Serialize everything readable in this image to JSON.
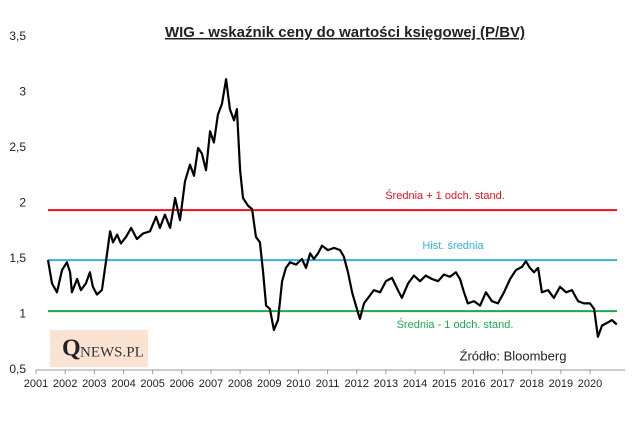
{
  "chart_data": {
    "type": "line",
    "title": "WIG - wskaźnik ceny do wartości księgowej (P/BV)",
    "x": [
      2001.41,
      2001.55,
      2001.72,
      2001.89,
      2002.06,
      2002.17,
      2002.23,
      2002.41,
      2002.54,
      2002.71,
      2002.85,
      2002.95,
      2003.09,
      2003.26,
      2003.4,
      2003.54,
      2003.64,
      2003.78,
      2003.91,
      2004.09,
      2004.26,
      2004.46,
      2004.67,
      2004.91,
      2005.12,
      2005.25,
      2005.42,
      2005.6,
      2005.77,
      2005.94,
      2006.11,
      2006.28,
      2006.42,
      2006.56,
      2006.69,
      2006.83,
      2006.97,
      2007.1,
      2007.24,
      2007.38,
      2007.52,
      2007.65,
      2007.79,
      2007.89,
      2008.0,
      2008.1,
      2008.27,
      2008.41,
      2008.54,
      2008.68,
      2008.78,
      2008.89,
      2009.02,
      2009.16,
      2009.3,
      2009.44,
      2009.57,
      2009.71,
      2009.92,
      2010.12,
      2010.26,
      2010.4,
      2010.53,
      2010.67,
      2010.81,
      2011.01,
      2011.22,
      2011.43,
      2011.56,
      2011.7,
      2011.84,
      2011.97,
      2012.11,
      2012.25,
      2012.39,
      2012.59,
      2012.8,
      2013.0,
      2013.21,
      2013.41,
      2013.55,
      2013.76,
      2013.96,
      2014.17,
      2014.37,
      2014.58,
      2014.79,
      2014.99,
      2015.2,
      2015.4,
      2015.54,
      2015.68,
      2015.81,
      2016.02,
      2016.23,
      2016.43,
      2016.64,
      2016.84,
      2017.05,
      2017.26,
      2017.46,
      2017.67,
      2017.8,
      2017.94,
      2018.08,
      2018.22,
      2018.35,
      2018.56,
      2018.76,
      2018.97,
      2019.18,
      2019.38,
      2019.59,
      2019.79,
      2020.0,
      2020.14,
      2020.27,
      2020.41,
      2020.62,
      2020.75,
      2020.92
    ],
    "series": [
      {
        "name": "WIG P/BV",
        "color": "#000000",
        "values": [
          1.49,
          1.28,
          1.2,
          1.4,
          1.47,
          1.38,
          1.2,
          1.32,
          1.22,
          1.28,
          1.38,
          1.25,
          1.18,
          1.22,
          1.48,
          1.75,
          1.65,
          1.72,
          1.64,
          1.7,
          1.78,
          1.68,
          1.73,
          1.75,
          1.88,
          1.78,
          1.9,
          1.78,
          2.05,
          1.85,
          2.2,
          2.35,
          2.25,
          2.5,
          2.45,
          2.3,
          2.65,
          2.55,
          2.8,
          2.9,
          3.12,
          2.85,
          2.75,
          2.85,
          2.3,
          2.05,
          1.98,
          1.95,
          1.7,
          1.65,
          1.4,
          1.08,
          1.05,
          0.86,
          0.95,
          1.3,
          1.42,
          1.47,
          1.45,
          1.5,
          1.42,
          1.55,
          1.5,
          1.55,
          1.62,
          1.58,
          1.6,
          1.58,
          1.52,
          1.38,
          1.2,
          1.08,
          0.96,
          1.1,
          1.15,
          1.22,
          1.2,
          1.3,
          1.33,
          1.22,
          1.15,
          1.28,
          1.35,
          1.3,
          1.35,
          1.32,
          1.3,
          1.36,
          1.34,
          1.38,
          1.32,
          1.2,
          1.1,
          1.12,
          1.08,
          1.2,
          1.12,
          1.1,
          1.2,
          1.32,
          1.4,
          1.43,
          1.48,
          1.42,
          1.38,
          1.42,
          1.2,
          1.22,
          1.15,
          1.25,
          1.2,
          1.22,
          1.12,
          1.1,
          1.1,
          1.05,
          0.8,
          0.9,
          0.93,
          0.95,
          0.91
        ]
      }
    ],
    "reference_lines": [
      {
        "value": 1.94,
        "label": "Średnia + 1 odch. stand.",
        "color": "#e8101e"
      },
      {
        "value": 1.49,
        "label": "Hist. średnia",
        "color": "#36b0e0"
      },
      {
        "value": 1.03,
        "label": "Średnia - 1 odch. stand.",
        "color": "#1faa4a"
      }
    ],
    "xlim": [
      2001,
      2021.2
    ],
    "xticks": [
      2001,
      2002,
      2003,
      2004,
      2005,
      2006,
      2007,
      2008,
      2009,
      2010,
      2011,
      2012,
      2013,
      2014,
      2015,
      2016,
      2017,
      2018,
      2019,
      2020
    ],
    "ylim": [
      0.5,
      3.5
    ],
    "yticks": [
      {
        "value": 0.5,
        "label": "0,5"
      },
      1,
      {
        "value": 1.5,
        "label": "1,5"
      },
      2,
      {
        "value": 2.5,
        "label": "2,5"
      },
      3,
      {
        "value": 3.5,
        "label": "3,5"
      }
    ],
    "source": "Źródło: Bloomberg",
    "logo": {
      "q": "Q",
      "rest": "NEWS.PL"
    }
  }
}
